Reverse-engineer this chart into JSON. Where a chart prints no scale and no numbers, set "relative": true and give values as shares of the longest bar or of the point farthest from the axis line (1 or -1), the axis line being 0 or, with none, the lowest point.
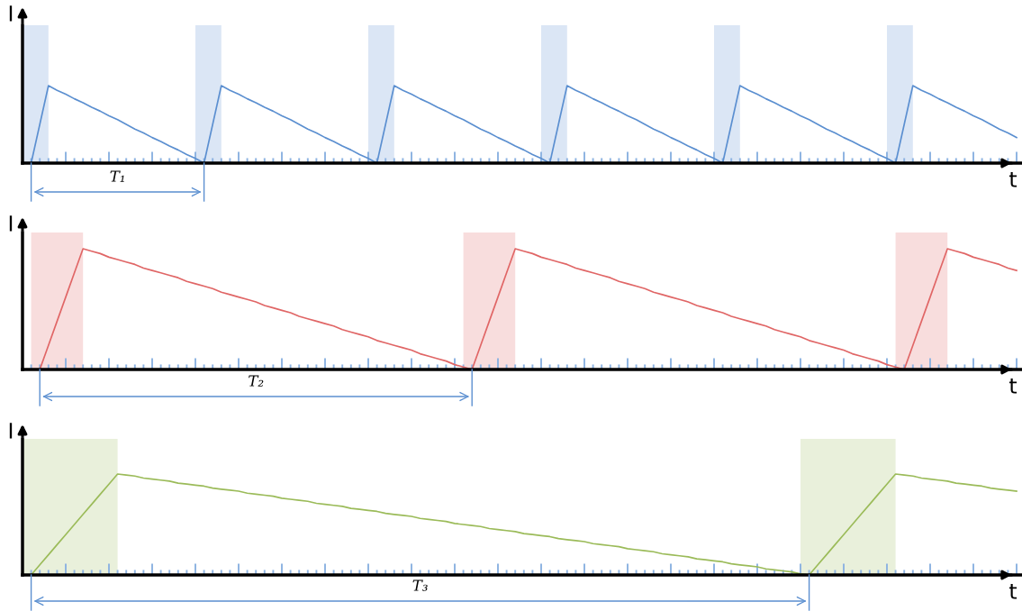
{
  "chart_data": [
    {
      "type": "line",
      "relative": true,
      "xlabel": "t",
      "ylabel": "I",
      "annotations": [
        "T₁"
      ],
      "categories": [
        null,
        null,
        null,
        null,
        null,
        null,
        null,
        null,
        null,
        null,
        null,
        null,
        null,
        null,
        null,
        null,
        null,
        null,
        null,
        null,
        null,
        null,
        null,
        null,
        null,
        null,
        null,
        null,
        null,
        null,
        null,
        null,
        null,
        null,
        null,
        null,
        null,
        null,
        null,
        null,
        null,
        null,
        null,
        null,
        null,
        null,
        null,
        null,
        null,
        null,
        null,
        null,
        null,
        null,
        null,
        null,
        null,
        null,
        null,
        null,
        null,
        null,
        null,
        null,
        null,
        null,
        null,
        null,
        null,
        null,
        null,
        null,
        null,
        null,
        null,
        null,
        null,
        null,
        null,
        null,
        null,
        null,
        null,
        null,
        null,
        null,
        null,
        null,
        null,
        null,
        null,
        null,
        null,
        null,
        null,
        null,
        null,
        null,
        null,
        null,
        null,
        null,
        null,
        null,
        null,
        null,
        null,
        null,
        null,
        null,
        null,
        null,
        null,
        null,
        null,
        null
      ],
      "series": [
        {
          "color": "#5b8fd0",
          "values": [
            null,
            0,
            0.5,
            1,
            0.94,
            0.89,
            0.83,
            0.78,
            0.72,
            0.67,
            0.61,
            0.56,
            0.5,
            0.44,
            0.39,
            0.33,
            0.28,
            0.22,
            0.17,
            0.11,
            0.06,
            0,
            0.5,
            1,
            0.94,
            0.89,
            0.83,
            0.78,
            0.72,
            0.67,
            0.61,
            0.56,
            0.5,
            0.44,
            0.39,
            0.33,
            0.28,
            0.22,
            0.17,
            0.11,
            0.06,
            0,
            0.5,
            1,
            0.94,
            0.89,
            0.83,
            0.78,
            0.72,
            0.67,
            0.61,
            0.56,
            0.5,
            0.44,
            0.39,
            0.33,
            0.28,
            0.22,
            0.17,
            0.11,
            0.06,
            0,
            0.5,
            1,
            0.94,
            0.89,
            0.83,
            0.78,
            0.72,
            0.67,
            0.61,
            0.56,
            0.5,
            0.44,
            0.39,
            0.33,
            0.28,
            0.22,
            0.17,
            0.11,
            0.06,
            0,
            0.5,
            1,
            0.94,
            0.89,
            0.83,
            0.78,
            0.72,
            0.67,
            0.61,
            0.56,
            0.5,
            0.44,
            0.39,
            0.33,
            0.28,
            0.22,
            0.17,
            0.11,
            0.06,
            0,
            0.5,
            1,
            0.94,
            0.89,
            0.83,
            0.78,
            0.72,
            0.67,
            0.61,
            0.56,
            0.5,
            0.44,
            0.39,
            0.33
          ]
        }
      ]
    },
    {
      "type": "line",
      "relative": true,
      "xlabel": "t",
      "ylabel": "I",
      "annotations": [
        "T₂"
      ],
      "categories": [
        null,
        null,
        null,
        null,
        null,
        null,
        null,
        null,
        null,
        null,
        null,
        null,
        null,
        null,
        null,
        null,
        null,
        null,
        null,
        null,
        null,
        null,
        null,
        null,
        null,
        null,
        null,
        null,
        null,
        null,
        null,
        null,
        null,
        null,
        null,
        null,
        null,
        null,
        null,
        null,
        null,
        null,
        null,
        null,
        null,
        null,
        null,
        null,
        null,
        null,
        null,
        null,
        null,
        null,
        null,
        null,
        null,
        null,
        null,
        null,
        null,
        null,
        null,
        null,
        null,
        null,
        null,
        null,
        null,
        null,
        null,
        null,
        null,
        null,
        null,
        null,
        null,
        null,
        null,
        null,
        null,
        null,
        null,
        null,
        null,
        null,
        null,
        null,
        null,
        null,
        null,
        null,
        null,
        null,
        null,
        null,
        null,
        null,
        null,
        null,
        null,
        null,
        null,
        null,
        null,
        null,
        null,
        null,
        null,
        null,
        null,
        null,
        null,
        null,
        null,
        null
      ],
      "series": [
        {
          "color": "#e06666",
          "values": [
            null,
            null,
            0,
            0.2,
            0.4,
            0.6,
            0.8,
            1,
            0.98,
            0.96,
            0.93,
            0.91,
            0.89,
            0.87,
            0.84,
            0.82,
            0.8,
            0.78,
            0.76,
            0.73,
            0.71,
            0.69,
            0.67,
            0.64,
            0.62,
            0.6,
            0.58,
            0.56,
            0.53,
            0.51,
            0.49,
            0.47,
            0.44,
            0.42,
            0.4,
            0.38,
            0.36,
            0.33,
            0.31,
            0.29,
            0.27,
            0.24,
            0.22,
            0.2,
            0.18,
            0.16,
            0.13,
            0.11,
            0.09,
            0.07,
            0.04,
            0.02,
            0,
            0.2,
            0.4,
            0.6,
            0.8,
            1,
            0.98,
            0.96,
            0.93,
            0.91,
            0.89,
            0.87,
            0.84,
            0.82,
            0.8,
            0.78,
            0.76,
            0.73,
            0.71,
            0.69,
            0.67,
            0.64,
            0.62,
            0.6,
            0.58,
            0.56,
            0.53,
            0.51,
            0.49,
            0.47,
            0.44,
            0.42,
            0.4,
            0.38,
            0.36,
            0.33,
            0.31,
            0.29,
            0.27,
            0.24,
            0.22,
            0.2,
            0.18,
            0.16,
            0.13,
            0.11,
            0.09,
            0.07,
            0.04,
            0.02,
            0,
            0.2,
            0.4,
            0.6,
            0.8,
            1,
            0.98,
            0.96,
            0.93,
            0.91,
            0.89,
            0.87,
            0.84,
            0.82
          ]
        }
      ]
    },
    {
      "type": "line",
      "relative": true,
      "xlabel": "t",
      "ylabel": "I",
      "annotations": [
        "T₃"
      ],
      "categories": [
        null,
        null,
        null,
        null,
        null,
        null,
        null,
        null,
        null,
        null,
        null,
        null,
        null,
        null,
        null,
        null,
        null,
        null,
        null,
        null,
        null,
        null,
        null,
        null,
        null,
        null,
        null,
        null,
        null,
        null,
        null,
        null,
        null,
        null,
        null,
        null,
        null,
        null,
        null,
        null,
        null,
        null,
        null,
        null,
        null,
        null,
        null,
        null,
        null,
        null,
        null,
        null,
        null,
        null,
        null,
        null,
        null,
        null,
        null,
        null,
        null,
        null,
        null,
        null,
        null,
        null,
        null,
        null,
        null,
        null,
        null,
        null,
        null,
        null,
        null,
        null,
        null,
        null,
        null,
        null,
        null,
        null,
        null,
        null,
        null,
        null,
        null,
        null,
        null,
        null,
        null,
        null,
        null,
        null,
        null,
        null,
        null,
        null,
        null,
        null,
        null,
        null,
        null,
        null,
        null,
        null,
        null,
        null,
        null,
        null,
        null,
        null,
        null,
        null,
        null,
        null
      ],
      "series": [
        {
          "color": "#9bbb59",
          "values": [
            null,
            0,
            0.1,
            0.2,
            0.3,
            0.4,
            0.5,
            0.6,
            0.7,
            0.8,
            0.9,
            1,
            0.99,
            0.98,
            0.96,
            0.95,
            0.94,
            0.93,
            0.91,
            0.9,
            0.89,
            0.88,
            0.86,
            0.85,
            0.84,
            0.83,
            0.81,
            0.8,
            0.79,
            0.78,
            0.76,
            0.75,
            0.74,
            0.73,
            0.71,
            0.7,
            0.69,
            0.68,
            0.66,
            0.65,
            0.64,
            0.63,
            0.61,
            0.6,
            0.59,
            0.58,
            0.56,
            0.55,
            0.54,
            0.53,
            0.51,
            0.5,
            0.49,
            0.48,
            0.46,
            0.45,
            0.44,
            0.43,
            0.41,
            0.4,
            0.39,
            0.38,
            0.36,
            0.35,
            0.34,
            0.33,
            0.31,
            0.3,
            0.29,
            0.28,
            0.26,
            0.25,
            0.24,
            0.23,
            0.21,
            0.2,
            0.19,
            0.18,
            0.16,
            0.15,
            0.14,
            0.13,
            0.11,
            0.1,
            0.09,
            0.08,
            0.06,
            0.05,
            0.04,
            0.03,
            0.01,
            0,
            0.1,
            0.2,
            0.3,
            0.4,
            0.5,
            0.6,
            0.7,
            0.8,
            0.9,
            1,
            0.99,
            0.98,
            0.96,
            0.95,
            0.94,
            0.93,
            0.91,
            0.9,
            0.89,
            0.88,
            0.86,
            0.85,
            0.84,
            0.83
          ]
        }
      ]
    }
  ]
}
